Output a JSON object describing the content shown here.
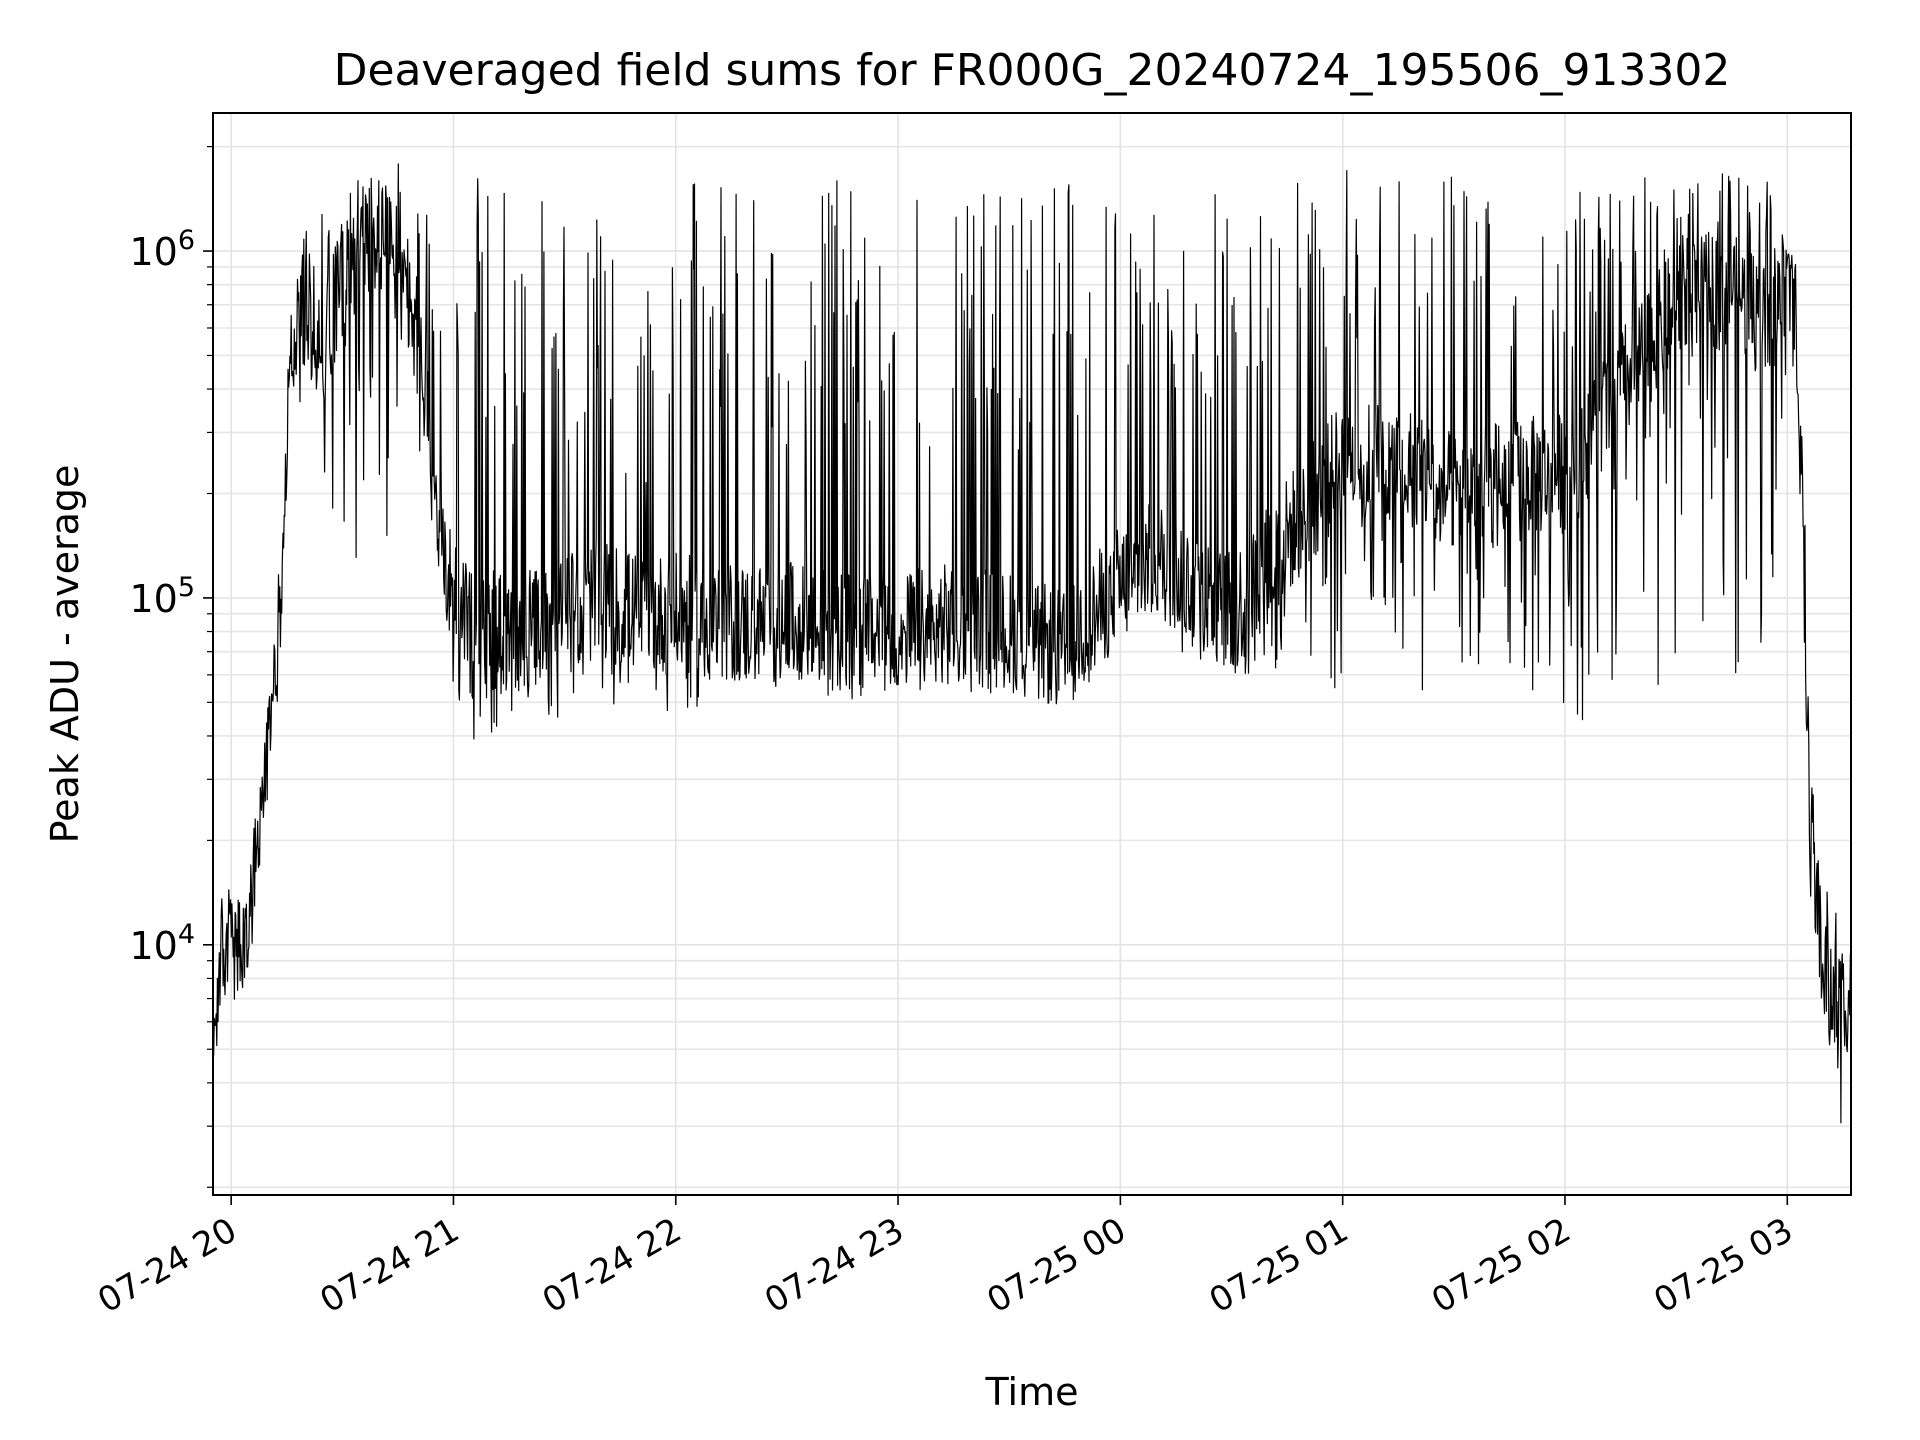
{
  "chart_data": {
    "type": "line",
    "title": "Deaveraged field sums for FR000G_20240724_195506_913302",
    "xlabel": "Time",
    "ylabel": "Peak ADU - average",
    "yscale": "log",
    "ylim": [
      1900,
      2500000
    ],
    "xlim": [
      "2024-07-24 19:55:06",
      "2024-07-25 03:17:12"
    ],
    "grid": "on",
    "legend": "none",
    "line_color": "#000000",
    "x_tick_labels": [
      "07-24 20",
      "07-24 21",
      "07-24 22",
      "07-24 23",
      "07-25 00",
      "07-25 01",
      "07-25 02",
      "07-25 03"
    ],
    "y_tick_labels": [
      {
        "base": "10",
        "exp": "4",
        "value": 10000
      },
      {
        "base": "10",
        "exp": "5",
        "value": 100000
      },
      {
        "base": "10",
        "exp": "6",
        "value": 1000000
      }
    ],
    "series": [
      {
        "x": [
          "2024-07-24 19:55:06",
          "2024-07-24 19:57:00",
          "2024-07-24 19:59:00",
          "2024-07-24 20:01:00",
          "2024-07-24 20:03:00",
          "2024-07-24 20:05:00",
          "2024-07-24 20:07:00",
          "2024-07-24 20:09:00",
          "2024-07-24 20:11:00",
          "2024-07-24 20:13:00",
          "2024-07-24 20:16:00",
          "2024-07-24 20:20:00",
          "2024-07-24 20:25:00",
          "2024-07-24 20:30:00",
          "2024-07-24 20:35:00",
          "2024-07-24 20:40:00",
          "2024-07-24 20:45:00",
          "2024-07-24 20:50:00",
          "2024-07-24 20:55:00",
          "2024-07-24 21:00:00",
          "2024-07-24 21:10:00",
          "2024-07-24 21:20:00",
          "2024-07-24 21:30:00",
          "2024-07-24 21:40:00",
          "2024-07-24 21:50:00",
          "2024-07-24 22:00:00",
          "2024-07-24 22:15:00",
          "2024-07-24 22:30:00",
          "2024-07-24 22:45:00",
          "2024-07-24 23:00:00",
          "2024-07-24 23:15:00",
          "2024-07-24 23:30:00",
          "2024-07-24 23:45:00",
          "2024-07-25 00:00:00",
          "2024-07-25 00:10:00",
          "2024-07-25 00:20:00",
          "2024-07-25 00:30:00",
          "2024-07-25 00:45:00",
          "2024-07-25 01:00:00",
          "2024-07-25 01:15:00",
          "2024-07-25 01:30:00",
          "2024-07-25 01:45:00",
          "2024-07-25 02:00:00",
          "2024-07-25 02:15:00",
          "2024-07-25 02:30:00",
          "2024-07-25 02:45:00",
          "2024-07-25 02:55:00",
          "2024-07-25 03:00:00",
          "2024-07-25 03:03:00",
          "2024-07-25 03:06:00",
          "2024-07-25 03:09:00",
          "2024-07-25 03:12:00",
          "2024-07-25 03:15:00",
          "2024-07-25 03:17:12"
        ],
        "base": [
          5000,
          9000,
          10500,
          9500,
          9000,
          12000,
          17000,
          28000,
          48000,
          85000,
          500000,
          700000,
          550000,
          800000,
          1100000,
          1100000,
          900000,
          600000,
          200000,
          100000,
          80000,
          80000,
          90000,
          100000,
          90000,
          90000,
          85000,
          85000,
          80000,
          80000,
          85000,
          80000,
          70000,
          110000,
          130000,
          110000,
          90000,
          150000,
          250000,
          250000,
          200000,
          220000,
          230000,
          400000,
          700000,
          800000,
          600000,
          900000,
          500000,
          25000,
          10000,
          7000,
          6500,
          8000
        ],
        "peak": [
          5000,
          9000,
          10500,
          12000,
          14000,
          16000,
          20000,
          40000,
          60000,
          100000,
          600000,
          1200000,
          1300000,
          1500000,
          1700000,
          1800000,
          1900000,
          1600000,
          1200000,
          1800000,
          1600000,
          1600000,
          1500000,
          1200000,
          600000,
          1600000,
          1600000,
          1600000,
          1600000,
          1600000,
          1600000,
          1600000,
          1600000,
          1600000,
          1300000,
          1600000,
          1700000,
          1800000,
          1800000,
          1800000,
          1700000,
          1600000,
          1600000,
          1600000,
          1700000,
          1700000,
          1600000,
          1000000,
          1000000,
          50000,
          20000,
          20000,
          12000,
          10000
        ],
        "trough": [
          5000,
          8000,
          9000,
          7000,
          6000,
          10000,
          14000,
          22000,
          40000,
          60000,
          400000,
          350000,
          200000,
          130000,
          130000,
          120000,
          120000,
          60000,
          55000,
          38000,
          40000,
          45000,
          45000,
          45000,
          50000,
          45000,
          55000,
          55000,
          50000,
          50000,
          55000,
          50000,
          50000,
          80000,
          90000,
          60000,
          55000,
          55000,
          50000,
          50000,
          55000,
          60000,
          40000,
          55000,
          55000,
          60000,
          60000,
          300000,
          300000,
          15000,
          6000,
          4500,
          2800,
          6000
        ]
      }
    ]
  }
}
